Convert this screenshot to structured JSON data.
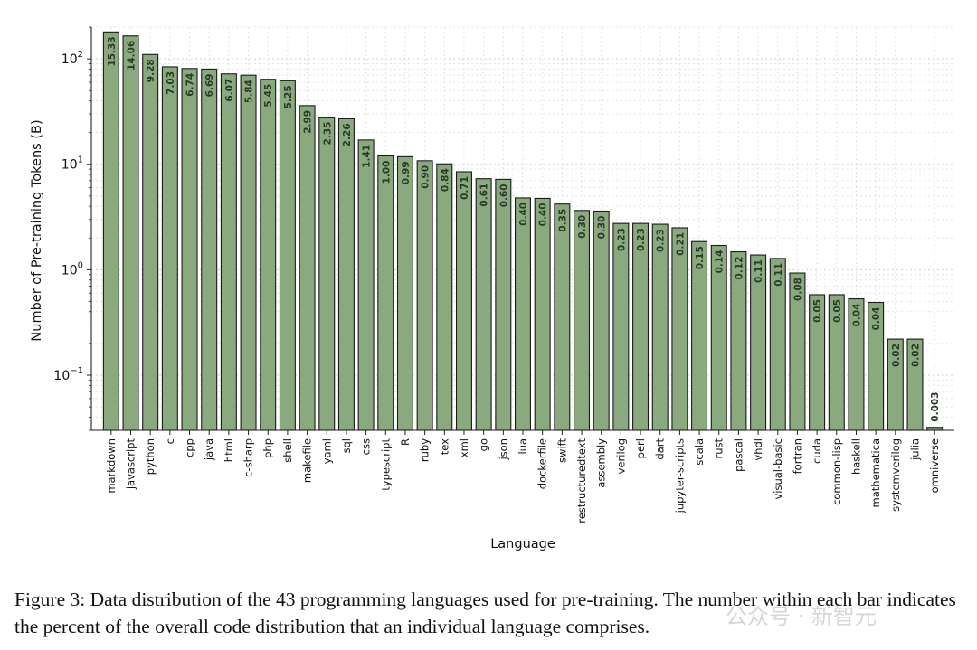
{
  "chart_data": {
    "type": "bar",
    "ylabel": "Number of Pre-training Tokens (B)",
    "xlabel": "Language",
    "yscale": "log",
    "ylim": [
      0.03,
      200
    ],
    "yticks": [
      {
        "value": 0.1,
        "base": "10",
        "exp": "−1"
      },
      {
        "value": 1,
        "base": "10",
        "exp": "0"
      },
      {
        "value": 10,
        "base": "10",
        "exp": "1"
      },
      {
        "value": 100,
        "base": "10",
        "exp": "2"
      }
    ],
    "grid": true,
    "bar_color": "#8aa97f",
    "bar_edge_color": "#1b1b1b",
    "label_color": "#2a3a28",
    "categories": [
      "markdown",
      "javascript",
      "python",
      "c",
      "cpp",
      "java",
      "html",
      "c-sharp",
      "php",
      "shell",
      "makefile",
      "yaml",
      "sql",
      "css",
      "typescript",
      "R",
      "ruby",
      "tex",
      "xml",
      "go",
      "json",
      "lua",
      "dockerfile",
      "swift",
      "restructuredtext",
      "assembly",
      "verilog",
      "perl",
      "dart",
      "jupyter-scripts",
      "scala",
      "rust",
      "pascal",
      "vhdl",
      "visual-basic",
      "fortran",
      "cuda",
      "common-lisp",
      "haskell",
      "mathematica",
      "systemverilog",
      "julia",
      "omniverse"
    ],
    "values": [
      180,
      165,
      110,
      84,
      81,
      80,
      72,
      70,
      64,
      62,
      36,
      28,
      27,
      17,
      12,
      11.8,
      10.8,
      10.1,
      8.5,
      7.3,
      7.2,
      4.8,
      4.75,
      4.2,
      3.65,
      3.6,
      2.75,
      2.75,
      2.7,
      2.5,
      1.85,
      1.7,
      1.48,
      1.38,
      1.28,
      0.93,
      0.58,
      0.58,
      0.53,
      0.49,
      0.22,
      0.22,
      0.032
    ],
    "labels": [
      "15.33",
      "14.06",
      "9.28",
      "7.03",
      "6.74",
      "6.69",
      "6.07",
      "5.84",
      "5.45",
      "5.25",
      "2.99",
      "2.35",
      "2.26",
      "1.41",
      "1.00",
      "0.99",
      "0.90",
      "0.84",
      "0.71",
      "0.61",
      "0.60",
      "0.40",
      "0.40",
      "0.35",
      "0.30",
      "0.30",
      "0.23",
      "0.23",
      "0.23",
      "0.21",
      "0.15",
      "0.14",
      "0.12",
      "0.11",
      "0.11",
      "0.08",
      "0.05",
      "0.05",
      "0.04",
      "0.04",
      "0.02",
      "0.02",
      "0.003"
    ]
  },
  "caption": {
    "text": "Figure 3: Data distribution of the 43 programming languages used for pre-training. The number within each bar indicates the percent of the overall code distribution that an individual language comprises."
  },
  "watermark": {
    "text": "公众号 · 新智元"
  }
}
